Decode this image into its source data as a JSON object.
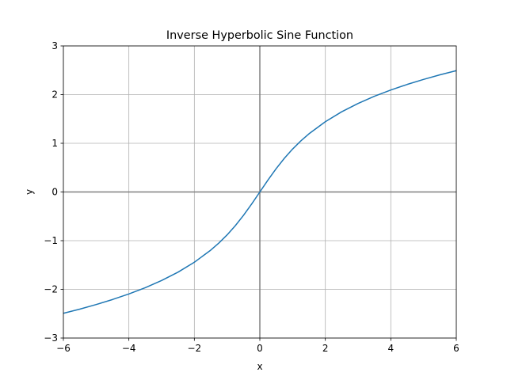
{
  "chart_data": {
    "type": "line",
    "title": "Inverse Hyperbolic Sine Function",
    "xlabel": "x",
    "ylabel": "y",
    "xlim": [
      -6,
      6
    ],
    "ylim": [
      -3,
      3
    ],
    "xticks": [
      -6,
      -4,
      -2,
      0,
      2,
      4,
      6
    ],
    "xtick_labels": [
      "−6",
      "−4",
      "−2",
      "0",
      "2",
      "4",
      "6"
    ],
    "yticks": [
      -3,
      -2,
      -1,
      0,
      1,
      2,
      3
    ],
    "ytick_labels": [
      "−3",
      "−2",
      "−1",
      "0",
      "1",
      "2",
      "3"
    ],
    "grid": true,
    "reference_lines": {
      "x": 0,
      "y": 0,
      "color": "#808080"
    },
    "series": [
      {
        "color": "#1f77b4",
        "x": [
          -6,
          -5.5,
          -5,
          -4.5,
          -4,
          -3.5,
          -3,
          -2.5,
          -2,
          -1.5,
          -1.25,
          -1,
          -0.75,
          -0.5,
          -0.25,
          0,
          0.25,
          0.5,
          0.75,
          1,
          1.25,
          1.5,
          2,
          2.5,
          3,
          3.5,
          4,
          4.5,
          5,
          5.5,
          6
        ],
        "y": [
          -2.4918,
          -2.4062,
          -2.3124,
          -2.209,
          -2.0947,
          -1.9657,
          -1.8184,
          -1.6472,
          -1.4436,
          -1.1948,
          -1.0476,
          -0.8814,
          -0.6931,
          -0.4812,
          -0.2475,
          0,
          0.2475,
          0.4812,
          0.6931,
          0.8814,
          1.0476,
          1.1948,
          1.4436,
          1.6472,
          1.8184,
          1.9657,
          2.0947,
          2.209,
          2.3124,
          2.4062,
          2.4918
        ]
      }
    ]
  }
}
